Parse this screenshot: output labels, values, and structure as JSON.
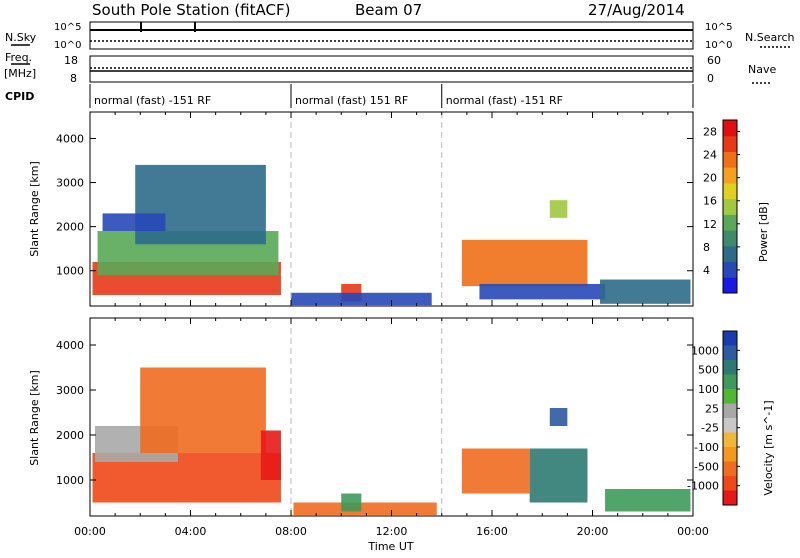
{
  "header": {
    "station": "South Pole Station (fitACF)",
    "beam": "Beam 07",
    "date": "27/Aug/2014"
  },
  "left_labels": {
    "nsky": "N.Sky",
    "nsky_ticks": [
      "10^5",
      "10^0"
    ],
    "freq": "Freq.",
    "freq_unit": "[MHz]",
    "freq_ticks": [
      "18",
      "8"
    ],
    "cpid": "CPID"
  },
  "right_labels": {
    "nsearch": "N.Search",
    "nsearch_ticks": [
      "10^5",
      "10^0"
    ],
    "nave": "Nave",
    "nave_ticks": [
      "60",
      "0"
    ]
  },
  "cpid_segments": [
    {
      "label": "normal (fast) -151 RF",
      "start_hour": 0
    },
    {
      "label": "normal (fast) 151 RF",
      "start_hour": 8
    },
    {
      "label": "normal (fast) -151 RF",
      "start_hour": 14
    }
  ],
  "colors": {
    "power": [
      "#1818e8",
      "#2848b8",
      "#2e6a8a",
      "#3e8a6a",
      "#5aa858",
      "#a0c840",
      "#e0d020",
      "#f5a020",
      "#f07018",
      "#e83818",
      "#e01010"
    ],
    "velocity": [
      "#e81818",
      "#f04818",
      "#f06c20",
      "#f5981c",
      "#f0b838",
      "#c8c8c8",
      "#a8a8a8",
      "#50b830",
      "#3e9a5a",
      "#2e7a72",
      "#2e5aa0",
      "#1a3ab0"
    ]
  },
  "chart_data": [
    {
      "type": "heatmap",
      "name": "power",
      "x_unit": "Time UT",
      "xlabel": "Time UT",
      "ylabel": "Slant Range [km]",
      "x_ticks": [
        "00:00",
        "04:00",
        "08:00",
        "12:00",
        "16:00",
        "20:00",
        "00:00"
      ],
      "xlim_hours": [
        0,
        24
      ],
      "ylim": [
        200,
        4600
      ],
      "y_ticks": [
        1000,
        2000,
        3000,
        4000
      ],
      "colorbar_label": "Power [dB]",
      "colorbar_ticks": [
        4,
        8,
        12,
        16,
        20,
        24,
        28
      ],
      "colorbar_range": [
        0,
        30
      ],
      "regions": [
        {
          "t0": 0.1,
          "t1": 7.6,
          "r0": 450,
          "r1": 1200,
          "level": 27
        },
        {
          "t0": 0.3,
          "t1": 7.5,
          "r0": 900,
          "r1": 1900,
          "level": 12
        },
        {
          "t0": 1.8,
          "t1": 7.0,
          "r0": 1600,
          "r1": 3400,
          "level": 6
        },
        {
          "t0": 0.5,
          "t1": 3.0,
          "r0": 1900,
          "r1": 2300,
          "level": 5
        },
        {
          "t0": 10.0,
          "t1": 10.8,
          "r0": 300,
          "r1": 700,
          "level": 25
        },
        {
          "t0": 8.0,
          "t1": 13.6,
          "r0": 220,
          "r1": 500,
          "level": 4
        },
        {
          "t0": 14.8,
          "t1": 19.8,
          "r0": 650,
          "r1": 1700,
          "level": 24
        },
        {
          "t0": 15.5,
          "t1": 20.5,
          "r0": 350,
          "r1": 700,
          "level": 5
        },
        {
          "t0": 20.3,
          "t1": 23.9,
          "r0": 250,
          "r1": 800,
          "level": 8
        },
        {
          "t0": 18.3,
          "t1": 19.0,
          "r0": 2200,
          "r1": 2600,
          "level": 14
        }
      ]
    },
    {
      "type": "heatmap",
      "name": "velocity",
      "xlabel": "Time UT",
      "ylabel": "Slant Range [km]",
      "x_ticks": [
        "00:00",
        "04:00",
        "08:00",
        "12:00",
        "16:00",
        "20:00",
        "00:00"
      ],
      "xlim_hours": [
        0,
        24
      ],
      "ylim": [
        200,
        4600
      ],
      "y_ticks": [
        1000,
        2000,
        3000,
        4000
      ],
      "colorbar_label": "Velocity [m s^-1]",
      "colorbar_ticks": [
        "1000",
        "500",
        "100",
        "25",
        "-25",
        "-100",
        "-500",
        "-1000"
      ],
      "regions": [
        {
          "t0": 0.1,
          "t1": 7.6,
          "r0": 500,
          "r1": 1600,
          "level": -300
        },
        {
          "t0": 0.2,
          "t1": 3.5,
          "r0": 1400,
          "r1": 2200,
          "level": 0
        },
        {
          "t0": 2.0,
          "t1": 7.0,
          "r0": 1600,
          "r1": 3500,
          "level": -150
        },
        {
          "t0": 6.8,
          "t1": 7.6,
          "r0": 1000,
          "r1": 2100,
          "level": -700
        },
        {
          "t0": 8.1,
          "t1": 13.8,
          "r0": 220,
          "r1": 500,
          "level": -150
        },
        {
          "t0": 10.0,
          "t1": 10.8,
          "r0": 300,
          "r1": 700,
          "level": 200
        },
        {
          "t0": 14.8,
          "t1": 17.5,
          "r0": 700,
          "r1": 1700,
          "level": -250
        },
        {
          "t0": 17.5,
          "t1": 19.8,
          "r0": 500,
          "r1": 1700,
          "level": 300
        },
        {
          "t0": 20.5,
          "t1": 23.9,
          "r0": 300,
          "r1": 800,
          "level": 100
        },
        {
          "t0": 18.3,
          "t1": 19.0,
          "r0": 2200,
          "r1": 2600,
          "level": 500
        }
      ]
    }
  ]
}
